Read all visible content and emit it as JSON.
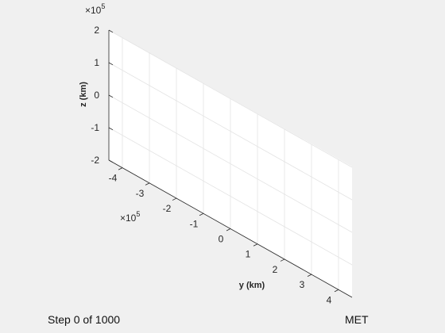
{
  "chart_data": {
    "type": "line",
    "title": "",
    "series": [],
    "y_axis": {
      "label": "y (km)",
      "ticks": [
        -4,
        -3,
        -2,
        -1,
        0,
        1,
        2,
        3,
        4
      ],
      "tick_labels": [
        "-4",
        "-3",
        "-2",
        "-1",
        "0",
        "1",
        "2",
        "3",
        "4"
      ],
      "exponent_label": "×10",
      "exponent_power": "5",
      "range": [
        -4.5,
        4.5
      ]
    },
    "z_axis": {
      "label": "z (km)",
      "ticks": [
        -2,
        -1,
        0,
        1,
        2
      ],
      "tick_labels": [
        "-2",
        "-1",
        "0",
        "1",
        "2"
      ],
      "exponent_label": "×10",
      "exponent_power": "5",
      "range": [
        -2,
        2
      ]
    },
    "grid": true,
    "view": "3d-yz-plane"
  },
  "status": {
    "step_text": "Step 0 of 1000",
    "mode_text": "MET"
  },
  "colors": {
    "figure_background": "#f0f0f0",
    "axes_background": "#ffffff",
    "grid": "#e3e3e3",
    "axis_line": "#262626"
  }
}
